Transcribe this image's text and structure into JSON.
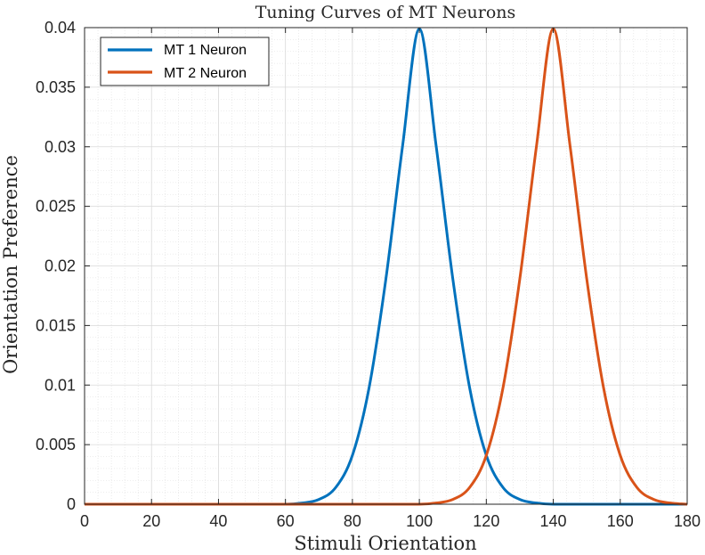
{
  "chart_data": {
    "type": "line",
    "title": "Tuning Curves of MT Neurons",
    "xlabel": "Stimuli Orientation",
    "ylabel": "Orientation Preference",
    "xlim": [
      0,
      180
    ],
    "ylim": [
      0,
      0.04
    ],
    "xticks": [
      0,
      20,
      40,
      60,
      80,
      100,
      120,
      140,
      160,
      180
    ],
    "xtick_labels": [
      "0",
      "20",
      "40",
      "60",
      "80",
      "100",
      "120",
      "140",
      "160",
      "180"
    ],
    "yticks": [
      0,
      0.005,
      0.01,
      0.015,
      0.02,
      0.025,
      0.03,
      0.035,
      0.04
    ],
    "ytick_labels": [
      "0",
      "0.005",
      "0.01",
      "0.015",
      "0.02",
      "0.025",
      "0.03",
      "0.035",
      "0.04"
    ],
    "grid": true,
    "minor_grid": true,
    "legend_position": "top-left",
    "series": [
      {
        "name": "MT 1 Neuron",
        "color": "#0072BD",
        "x": [
          0,
          60,
          65,
          70,
          75,
          80,
          85,
          90,
          95,
          100,
          105,
          110,
          115,
          120,
          125,
          130,
          135,
          140,
          180
        ],
        "y": [
          0,
          0,
          0.0001,
          0.0004,
          0.0014,
          0.0041,
          0.0098,
          0.0189,
          0.0301,
          0.0399,
          0.0301,
          0.0189,
          0.0098,
          0.0041,
          0.0014,
          0.0004,
          0.0001,
          0,
          0
        ]
      },
      {
        "name": "MT 2 Neuron",
        "color": "#D95319",
        "x": [
          0,
          100,
          105,
          110,
          115,
          120,
          125,
          130,
          135,
          140,
          145,
          150,
          155,
          160,
          165,
          170,
          175,
          180
        ],
        "y": [
          0,
          0,
          0.0001,
          0.0004,
          0.0014,
          0.0041,
          0.0098,
          0.0189,
          0.0301,
          0.0399,
          0.0301,
          0.0189,
          0.0098,
          0.0041,
          0.0014,
          0.0004,
          0.0001,
          0
        ]
      }
    ]
  }
}
